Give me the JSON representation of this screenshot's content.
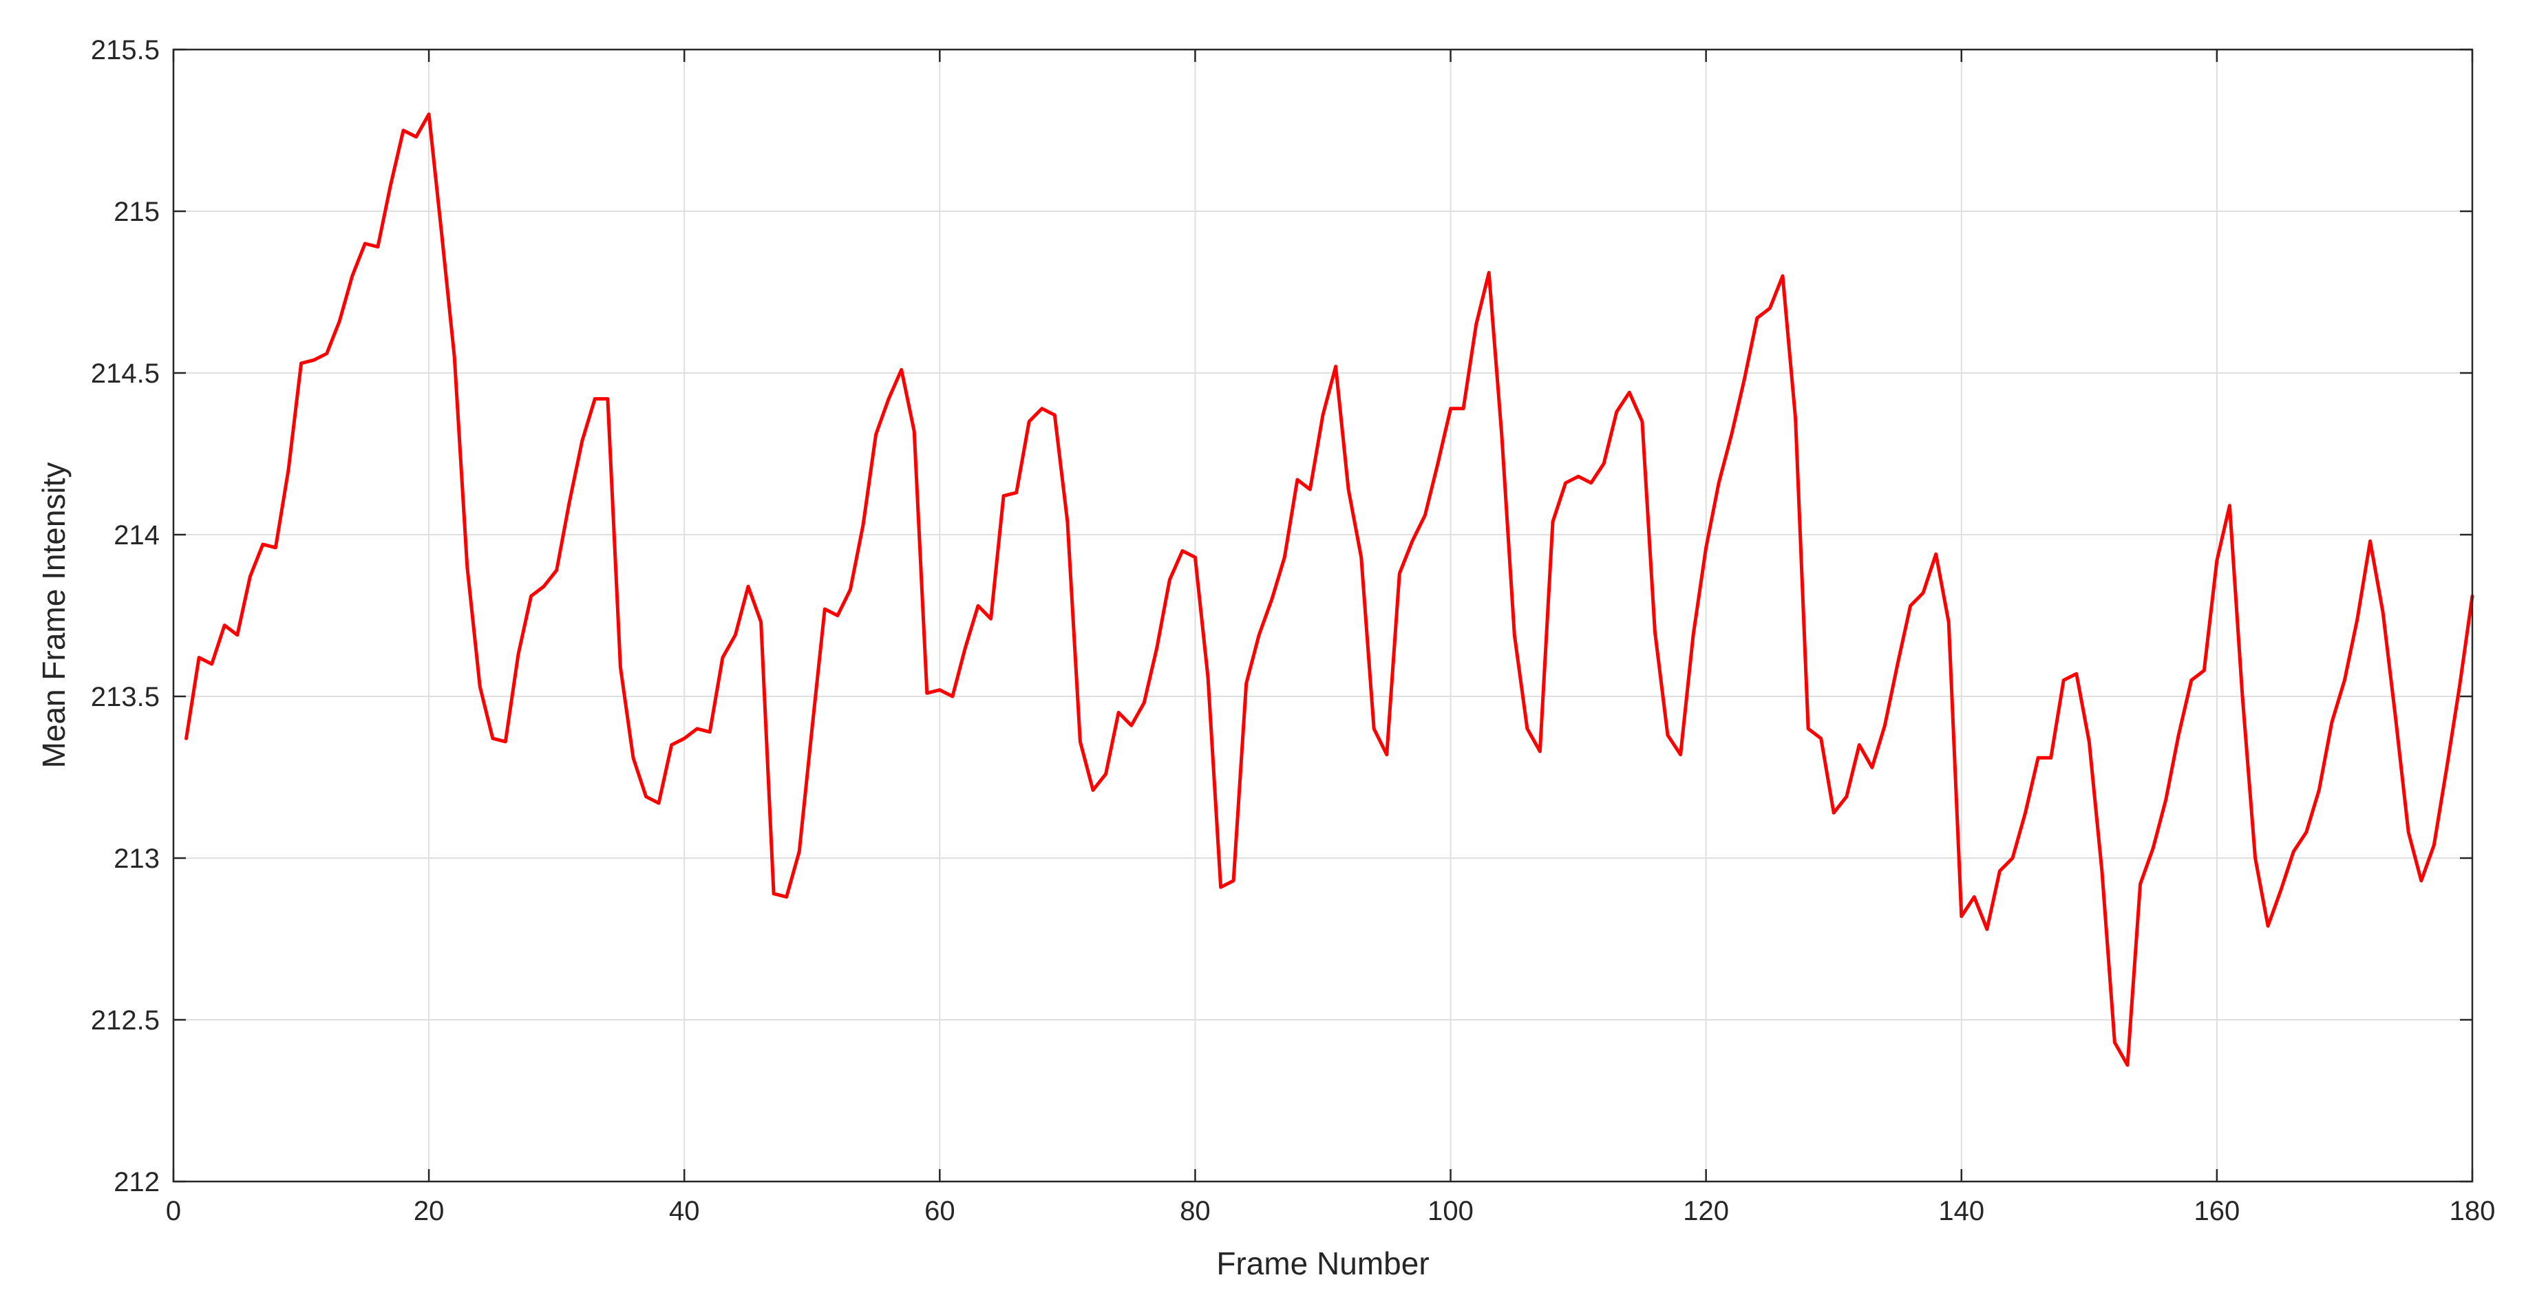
{
  "chart_data": {
    "type": "line",
    "title": "",
    "xlabel": "Frame Number",
    "ylabel": "Mean Frame Intensity",
    "xlim": [
      0,
      180
    ],
    "ylim": [
      212,
      215.5
    ],
    "xticks": [
      0,
      20,
      40,
      60,
      80,
      100,
      120,
      140,
      160,
      180
    ],
    "yticks": [
      212,
      212.5,
      213,
      213.5,
      214,
      214.5,
      215,
      215.5
    ],
    "xtick_labels": [
      "0",
      "20",
      "40",
      "60",
      "80",
      "100",
      "120",
      "140",
      "160",
      "180"
    ],
    "ytick_labels": [
      "212",
      "212.5",
      "213",
      "213.5",
      "214",
      "214.5",
      "215",
      "215.5"
    ],
    "grid": true,
    "line_color": "#ff0000",
    "series": [
      {
        "x": [
          1,
          2,
          3,
          4,
          5,
          6,
          7,
          8,
          9,
          10,
          11,
          12,
          13,
          14,
          15,
          16,
          17,
          18,
          19,
          20,
          21,
          22,
          23,
          24,
          25,
          26,
          27,
          28,
          29,
          30,
          31,
          32,
          33,
          34,
          35,
          36,
          37,
          38,
          39,
          40,
          41,
          42,
          43,
          44,
          45,
          46,
          47,
          48,
          49,
          50,
          51,
          52,
          53,
          54,
          55,
          56,
          57,
          58,
          59,
          60,
          61,
          62,
          63,
          64,
          65,
          66,
          67,
          68,
          69,
          70,
          71,
          72,
          73,
          74,
          75,
          76,
          77,
          78,
          79,
          80,
          81,
          82,
          83,
          84,
          85,
          86,
          87,
          88,
          89,
          90,
          91,
          92,
          93,
          94,
          95,
          96,
          97,
          98,
          99,
          100,
          101,
          102,
          103,
          104,
          105,
          106,
          107,
          108,
          109,
          110,
          111,
          112,
          113,
          114,
          115,
          116,
          117,
          118,
          119,
          120,
          121,
          122,
          123,
          124,
          125,
          126,
          127,
          128,
          129,
          130,
          131,
          132,
          133,
          134,
          135,
          136,
          137,
          138,
          139,
          140,
          141,
          142,
          143,
          144,
          145,
          146,
          147,
          148,
          149,
          150,
          151,
          152,
          153,
          154,
          155,
          156,
          157,
          158,
          159,
          160,
          161,
          162,
          163,
          164,
          165,
          166,
          167,
          168,
          169,
          170,
          171,
          172,
          173,
          174,
          175,
          176,
          177,
          178,
          179,
          180
        ],
        "y": [
          213.37,
          213.62,
          213.6,
          213.72,
          213.69,
          213.87,
          213.97,
          213.96,
          214.2,
          214.53,
          214.54,
          214.56,
          214.66,
          214.8,
          214.9,
          214.89,
          215.08,
          215.25,
          215.23,
          215.3,
          214.93,
          214.55,
          213.9,
          213.53,
          213.37,
          213.36,
          213.63,
          213.81,
          213.84,
          213.89,
          214.1,
          214.29,
          214.42,
          214.42,
          213.59,
          213.31,
          213.19,
          213.17,
          213.35,
          213.37,
          213.4,
          213.39,
          213.62,
          213.69,
          213.84,
          213.73,
          212.89,
          212.88,
          213.02,
          213.4,
          213.77,
          213.75,
          213.83,
          214.03,
          214.31,
          214.42,
          214.51,
          214.32,
          213.51,
          213.52,
          213.5,
          213.65,
          213.78,
          213.74,
          214.12,
          214.13,
          214.35,
          214.39,
          214.37,
          214.04,
          213.36,
          213.21,
          213.26,
          213.45,
          213.41,
          213.48,
          213.65,
          213.86,
          213.95,
          213.93,
          213.56,
          212.91,
          212.93,
          213.54,
          213.69,
          213.8,
          213.93,
          214.17,
          214.14,
          214.37,
          214.52,
          214.14,
          213.93,
          213.4,
          213.32,
          213.88,
          213.98,
          214.06,
          214.22,
          214.39,
          214.39,
          214.65,
          214.81,
          214.31,
          213.69,
          213.4,
          213.33,
          214.04,
          214.16,
          214.18,
          214.16,
          214.22,
          214.38,
          214.44,
          214.35,
          213.7,
          213.38,
          213.32,
          213.69,
          213.96,
          214.16,
          214.31,
          214.48,
          214.67,
          214.7,
          214.8,
          214.36,
          213.4,
          213.37,
          213.14,
          213.19,
          213.35,
          213.28,
          213.41,
          213.6,
          213.78,
          213.82,
          213.94,
          213.73,
          212.82,
          212.88,
          212.78,
          212.96,
          213.0,
          213.14,
          213.31,
          213.31,
          213.55,
          213.57,
          213.36,
          212.96,
          212.43,
          212.36,
          212.92,
          213.03,
          213.18,
          213.38,
          213.55,
          213.58,
          213.92,
          214.09,
          213.5,
          213.0,
          212.79,
          212.9,
          213.02,
          213.08,
          213.21,
          213.42,
          213.55,
          213.74,
          213.98,
          213.76,
          213.43,
          213.08,
          212.93,
          213.04,
          213.28,
          213.53,
          213.81
        ]
      }
    ]
  }
}
